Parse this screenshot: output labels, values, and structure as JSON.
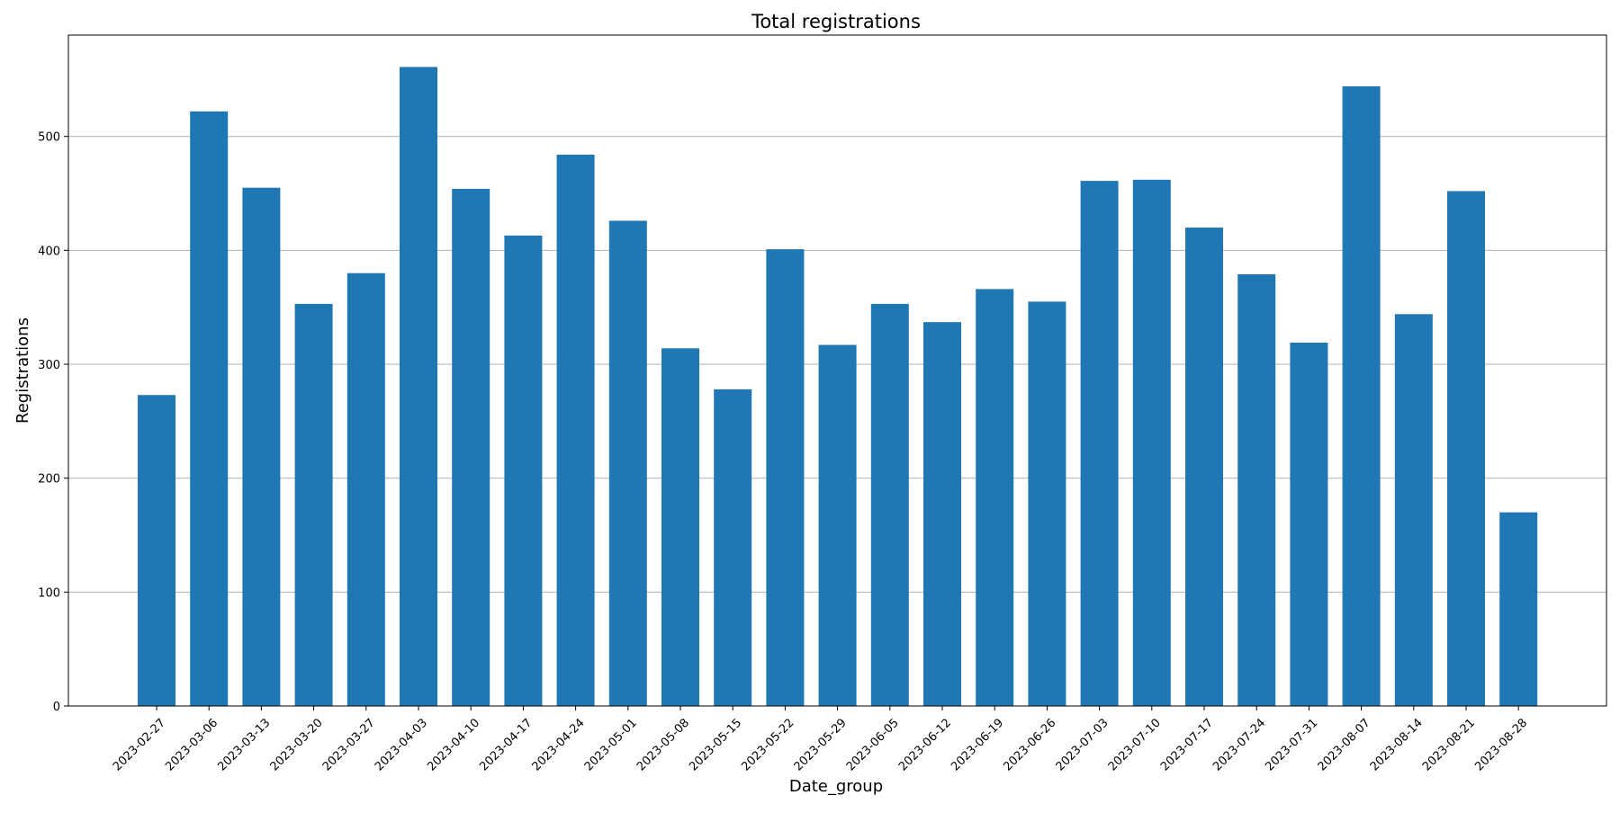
{
  "chart_data": {
    "type": "bar",
    "title": "Total registrations",
    "xlabel": "Date_group",
    "ylabel": "Registrations",
    "categories": [
      "2023-02-27",
      "2023-03-06",
      "2023-03-13",
      "2023-03-20",
      "2023-03-27",
      "2023-04-03",
      "2023-04-10",
      "2023-04-17",
      "2023-04-24",
      "2023-05-01",
      "2023-05-08",
      "2023-05-15",
      "2023-05-22",
      "2023-05-29",
      "2023-06-05",
      "2023-06-12",
      "2023-06-19",
      "2023-06-26",
      "2023-07-03",
      "2023-07-10",
      "2023-07-17",
      "2023-07-24",
      "2023-07-31",
      "2023-08-07",
      "2023-08-14",
      "2023-08-21",
      "2023-08-28"
    ],
    "values": [
      273,
      522,
      455,
      353,
      380,
      561,
      454,
      413,
      484,
      426,
      314,
      278,
      401,
      317,
      353,
      337,
      366,
      355,
      461,
      462,
      420,
      379,
      319,
      544,
      344,
      452,
      170
    ],
    "ylim": [
      0,
      589
    ],
    "yticks": [
      0,
      100,
      200,
      300,
      400,
      500
    ],
    "grid": "y",
    "bar_color": "#1f77b4",
    "grid_color": "#b0b0b0"
  }
}
